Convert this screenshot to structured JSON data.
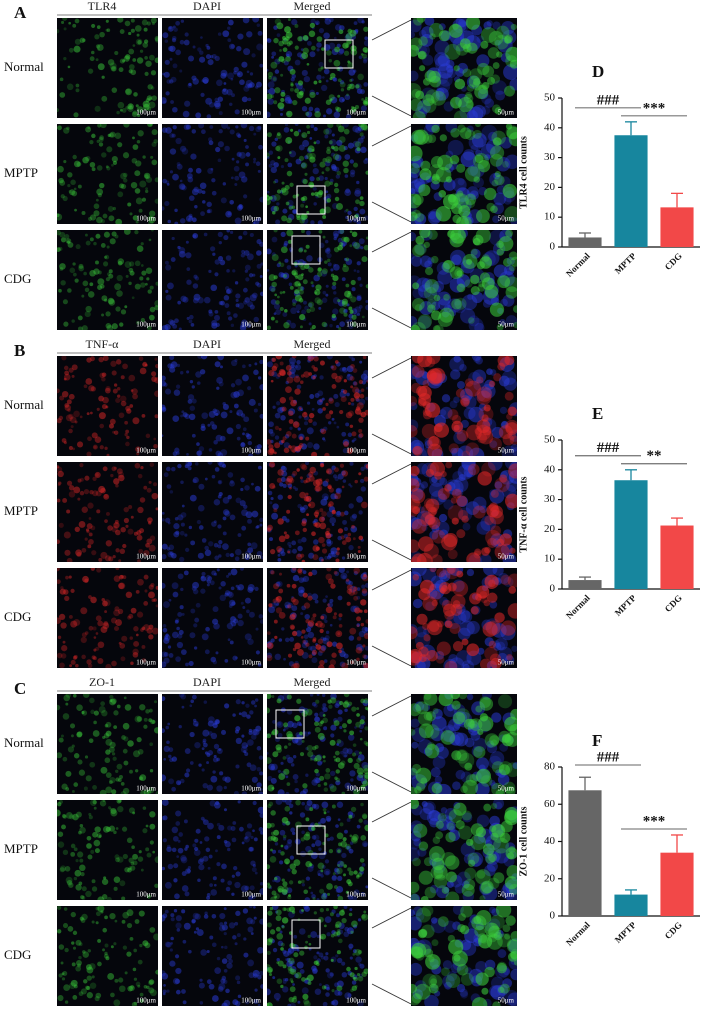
{
  "figure": {
    "panels": [
      {
        "letter": "A",
        "headers": [
          "TLR4",
          "DAPI",
          "Merged"
        ],
        "rows": [
          "Normal",
          "MPTP",
          "CDG"
        ],
        "stain_color": "#3ccf3c",
        "scale_main": "100μm",
        "scale_zoom": "50μm"
      },
      {
        "letter": "B",
        "headers": [
          "TNF-α",
          "DAPI",
          "Merged"
        ],
        "rows": [
          "Normal",
          "MPTP",
          "CDG"
        ],
        "stain_color": "#e02828",
        "scale_main": "100μm",
        "scale_zoom": "50μm"
      },
      {
        "letter": "C",
        "headers": [
          "ZO-1",
          "DAPI",
          "Merged"
        ],
        "rows": [
          "Normal",
          "MPTP",
          "CDG"
        ],
        "stain_color": "#3ccf3c",
        "scale_main": "100μm",
        "scale_zoom": "50μm"
      }
    ]
  },
  "chart_data": [
    {
      "type": "bar",
      "letter": "D",
      "ylabel": "TLR4 cell counts",
      "categories": [
        "Normal",
        "MPTP",
        "CDG"
      ],
      "values": [
        3.2,
        37.5,
        13.3
      ],
      "errors": [
        1.5,
        4.5,
        4.7
      ],
      "colors": [
        "#666666",
        "#17869e",
        "#f24848"
      ],
      "ylim": [
        0,
        50
      ],
      "yticks": [
        0,
        10,
        20,
        30,
        40,
        50
      ],
      "significance": [
        "###",
        "***"
      ]
    },
    {
      "type": "bar",
      "letter": "E",
      "ylabel": "TNF-α cell counts",
      "categories": [
        "Normal",
        "MPTP",
        "CDG"
      ],
      "values": [
        3,
        36.5,
        21.3
      ],
      "errors": [
        1,
        3.5,
        2.5
      ],
      "colors": [
        "#666666",
        "#17869e",
        "#f24848"
      ],
      "ylim": [
        0,
        50
      ],
      "yticks": [
        0,
        10,
        20,
        30,
        40,
        50
      ],
      "significance": [
        "###",
        "**"
      ]
    },
    {
      "type": "bar",
      "letter": "F",
      "ylabel": "ZO-1 cell counts",
      "categories": [
        "Normal",
        "MPTP",
        "CDG"
      ],
      "values": [
        67.5,
        11.5,
        34
      ],
      "errors": [
        7,
        2.5,
        9.5
      ],
      "colors": [
        "#666666",
        "#17869e",
        "#f24848"
      ],
      "ylim": [
        0,
        80
      ],
      "yticks": [
        0,
        20,
        40,
        60,
        80
      ],
      "significance": [
        "###",
        "***"
      ]
    }
  ]
}
